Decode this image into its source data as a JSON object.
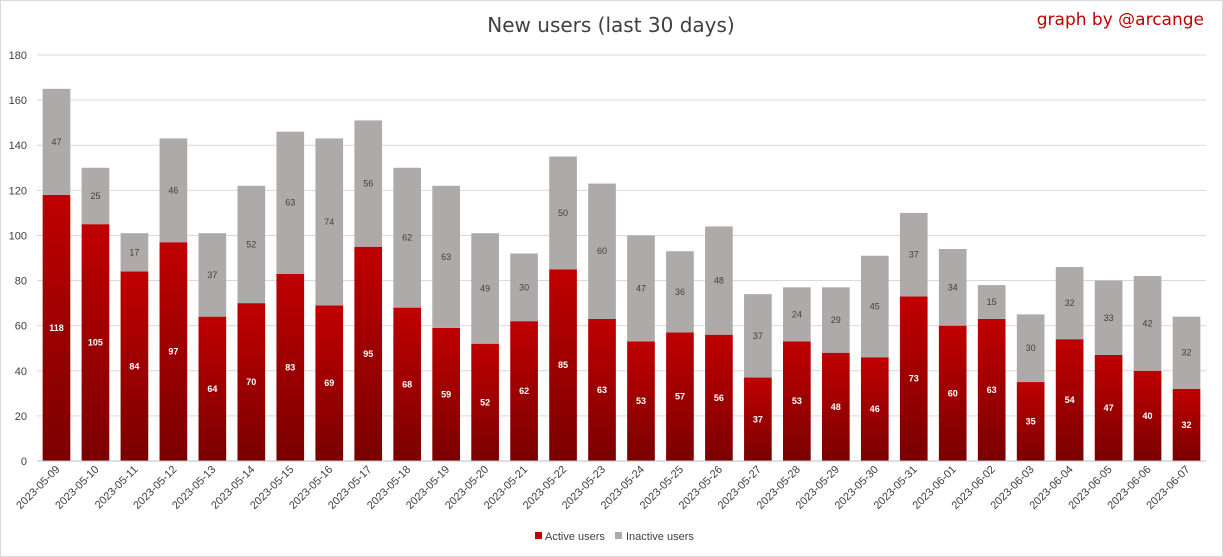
{
  "chart_data": {
    "type": "bar",
    "stacked": true,
    "title": "New users (last 30 days)",
    "credit": "graph by @arcange",
    "xlabel": "",
    "ylabel": "",
    "ylim": [
      0,
      180
    ],
    "yticks": [
      0,
      20,
      40,
      60,
      80,
      100,
      120,
      140,
      160,
      180
    ],
    "grid": true,
    "legend_position": "bottom",
    "categories": [
      "2023-05-09",
      "2023-05-10",
      "2023-05-11",
      "2023-05-12",
      "2023-05-13",
      "2023-05-14",
      "2023-05-15",
      "2023-05-16",
      "2023-05-17",
      "2023-05-18",
      "2023-05-19",
      "2023-05-20",
      "2023-05-21",
      "2023-05-22",
      "2023-05-23",
      "2023-05-24",
      "2023-05-25",
      "2023-05-26",
      "2023-05-27",
      "2023-05-28",
      "2023-05-29",
      "2023-05-30",
      "2023-05-31",
      "2023-06-01",
      "2023-06-02",
      "2023-06-03",
      "2023-06-04",
      "2023-06-05",
      "2023-06-06",
      "2023-06-07"
    ],
    "series": [
      {
        "name": "Active users",
        "color": "#c00000",
        "values": [
          118,
          105,
          84,
          97,
          64,
          70,
          83,
          69,
          95,
          68,
          59,
          52,
          62,
          85,
          63,
          53,
          57,
          56,
          37,
          53,
          48,
          46,
          73,
          60,
          63,
          35,
          54,
          47,
          40,
          32
        ]
      },
      {
        "name": "Inactive users",
        "color": "#aeaaaa",
        "values": [
          47,
          25,
          17,
          46,
          37,
          52,
          63,
          74,
          56,
          62,
          63,
          49,
          30,
          50,
          60,
          47,
          36,
          48,
          37,
          24,
          29,
          45,
          37,
          34,
          15,
          30,
          32,
          33,
          42,
          32
        ]
      }
    ]
  }
}
